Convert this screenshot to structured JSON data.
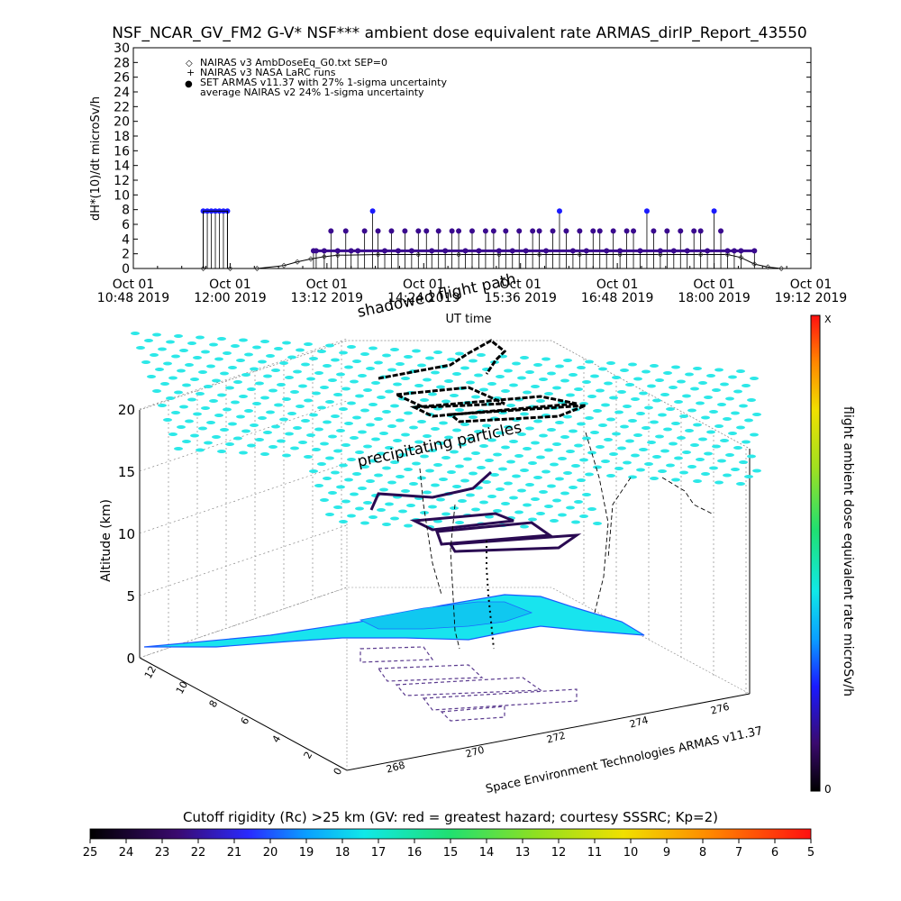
{
  "chart_data": [
    {
      "type": "scatter",
      "title": "NSF_NCAR_GV_FM2 G-V* NSF*** ambient dose equivalent rate ARMAS_dirIP_Report_43550",
      "ylabel": "dH*(10)/dt microSv/h",
      "xlabel": "UT time",
      "ylim": [
        0,
        30
      ],
      "yticks": [
        "0",
        "2",
        "4",
        "6",
        "8",
        "10",
        "12",
        "14",
        "16",
        "18",
        "20",
        "22",
        "24",
        "26",
        "28",
        "30"
      ],
      "xticks": [
        {
          "date": "Oct 01",
          "time": "10:48 2019"
        },
        {
          "date": "Oct 01",
          "time": "12:00 2019"
        },
        {
          "date": "Oct 01",
          "time": "13:12 2019"
        },
        {
          "date": "Oct 01",
          "time": "14:24 2019"
        },
        {
          "date": "Oct 01",
          "time": "15:36 2019"
        },
        {
          "date": "Oct 01",
          "time": "16:48 2019"
        },
        {
          "date": "Oct 01",
          "time": "18:00 2019"
        },
        {
          "date": "Oct 01",
          "time": "19:12 2019"
        }
      ],
      "xrange_minutes": [
        648,
        1152
      ],
      "legend": [
        {
          "symbol": "◇",
          "label": "NAIRAS v3 AmbDoseEq_G0.txt SEP=0"
        },
        {
          "symbol": "+",
          "label": "NAIRAS v3 NASA LaRC runs"
        },
        {
          "symbol": "●",
          "label": "SET ARMAS v11.37 with 27% 1-sigma uncertainty"
        },
        {
          "symbol": "",
          "label": "average NAIRAS v2 24% 1-sigma uncertainty"
        }
      ],
      "legend_position": "top-left",
      "series": [
        {
          "name": "SET ARMAS v11.37 with 27% 1-sigma uncertainty",
          "x": [
            700,
            703,
            706,
            709,
            712,
            715,
            718,
            782,
            784,
            790,
            795,
            800,
            806,
            810,
            815,
            820,
            826,
            830,
            835,
            840,
            845,
            850,
            855,
            860,
            866,
            870,
            875,
            880,
            885,
            890,
            895,
            900,
            905,
            910,
            916,
            920,
            925,
            930,
            935,
            940,
            945,
            950,
            955,
            960,
            965,
            970,
            975,
            980,
            985,
            990,
            995,
            1000,
            1005,
            1010,
            1015,
            1020,
            1025,
            1030,
            1035,
            1040,
            1045,
            1050,
            1055,
            1060,
            1065,
            1070,
            1075,
            1080,
            1085,
            1090,
            1095,
            1100,
            1110
          ],
          "y": [
            7.8,
            7.8,
            7.8,
            7.8,
            7.8,
            7.8,
            7.8,
            2.4,
            2.4,
            2.4,
            5.1,
            2.4,
            5.1,
            2.4,
            2.4,
            5.1,
            7.8,
            5.1,
            2.4,
            5.1,
            2.4,
            5.1,
            2.4,
            5.1,
            5.1,
            2.4,
            5.1,
            2.4,
            5.1,
            5.1,
            2.4,
            5.1,
            2.4,
            5.1,
            5.1,
            2.4,
            5.1,
            2.4,
            5.1,
            2.4,
            5.1,
            5.1,
            2.4,
            5.1,
            7.8,
            5.1,
            2.4,
            5.1,
            2.4,
            5.1,
            5.1,
            2.4,
            5.1,
            2.4,
            5.1,
            5.1,
            2.4,
            7.8,
            5.1,
            2.4,
            5.1,
            2.4,
            5.1,
            2.4,
            5.1,
            5.1,
            2.4,
            7.8,
            5.1,
            2.4,
            2.4,
            2.4,
            2.4
          ]
        },
        {
          "name": "NAIRAS v3 AmbDoseEq_G0.txt SEP=0",
          "x": [
            700,
            720,
            740,
            760,
            770,
            780,
            790,
            800,
            830,
            860,
            890,
            920,
            950,
            980,
            1010,
            1040,
            1070,
            1090,
            1100,
            1110,
            1120,
            1130
          ],
          "y": [
            0,
            0,
            0,
            0.4,
            0.9,
            1.3,
            1.6,
            1.8,
            1.9,
            1.9,
            1.9,
            1.9,
            1.9,
            1.9,
            1.9,
            1.9,
            1.9,
            1.9,
            1.5,
            0.6,
            0.2,
            0
          ]
        }
      ]
    },
    {
      "type": "scatter",
      "title": "shadowed flight path",
      "annotation": "precipitating particles",
      "zlabel": "Altitude (km)",
      "zticks": [
        "0",
        "5",
        "10",
        "15",
        "20"
      ],
      "xticks_lon": [
        "268",
        "270",
        "272",
        "274",
        "276"
      ],
      "yticks_lat": [
        "0",
        "2",
        "4",
        "6",
        "8",
        "10",
        "12"
      ],
      "colorbar_label": "flight ambient dose equivalent rate microSv/h",
      "colorbar_top": "X",
      "colorbar_bottom": "0",
      "credit": "Space Environment Technologies ARMAS v11.37"
    },
    {
      "type": "heatmap",
      "title": "Cutoff rigidity (Rc) >25 km (GV: red = greatest hazard; courtesy SSSRC; Kp=2)",
      "ticks": [
        "25",
        "24",
        "23",
        "22",
        "21",
        "20",
        "19",
        "18",
        "17",
        "16",
        "15",
        "14",
        "13",
        "12",
        "11",
        "10",
        "9",
        "8",
        "7",
        "6",
        "5"
      ]
    }
  ]
}
